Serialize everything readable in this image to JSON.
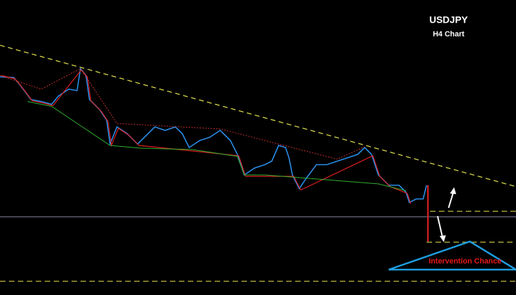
{
  "title": "USDJPY",
  "subtitle": "H4 Chart",
  "annotation": "Intervention Chance"
}
